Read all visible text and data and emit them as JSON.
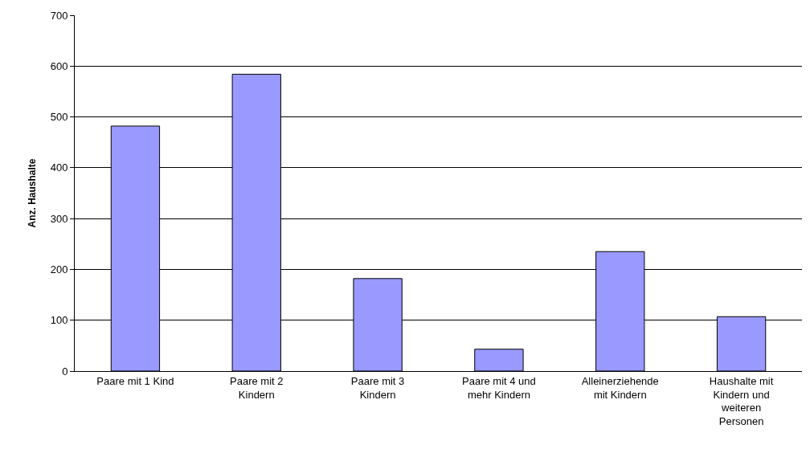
{
  "chart_data": {
    "type": "bar",
    "ylabel": "Anz. Haushalte",
    "categories": [
      "Paare mit 1 Kind",
      "Paare mit 2 Kindern",
      "Paare mit 3 Kindern",
      "Paare mit 4 und mehr Kindern",
      "Alleinerziehende mit Kindern",
      "Haushalte mit Kindern und weiteren Personen"
    ],
    "values": [
      482,
      584,
      182,
      43,
      235,
      107
    ],
    "color": "#9999ff",
    "ylim": [
      0,
      700
    ],
    "yticks": [
      0,
      100,
      200,
      300,
      400,
      500,
      600,
      700
    ],
    "grid": "y",
    "legend": false
  }
}
